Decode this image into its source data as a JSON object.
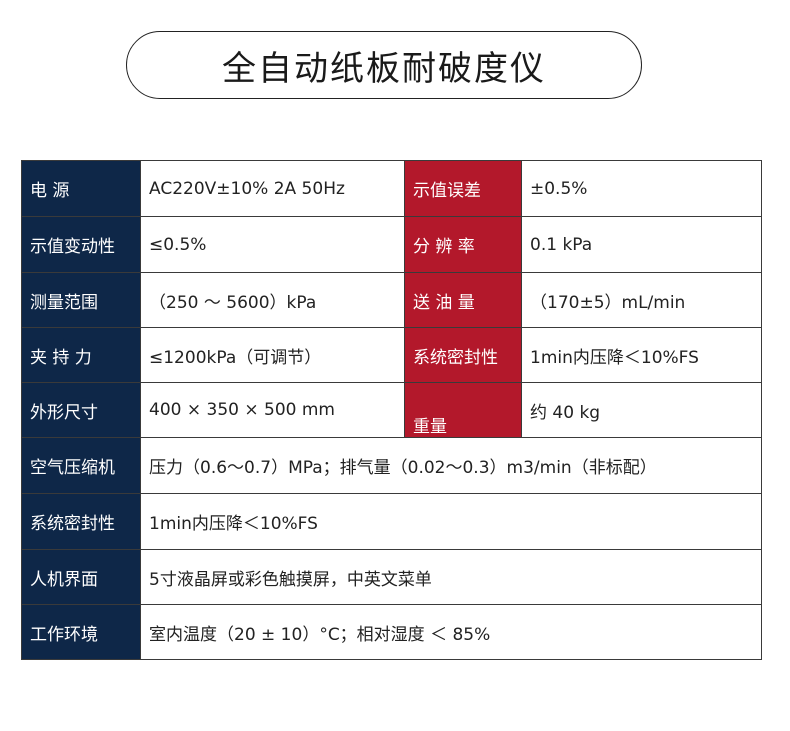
{
  "title": "全自动纸板耐破度仪",
  "rows": [
    {
      "label": "电  源",
      "value": "AC220V±10%  2A  50Hz",
      "label2": "示值误差",
      "value2": "±0.5%"
    },
    {
      "label": "示值变动性",
      "value": "≤0.5%",
      "label2": "分 辨 率",
      "value2": "0.1 kPa"
    },
    {
      "label": "测量范围",
      "value": "（250 ～ 5600）kPa",
      "label2": "送 油 量",
      "value2": "（170±5）mL/min"
    },
    {
      "label": "夹 持 力",
      "value": "≤1200kPa（可调节）",
      "label2": "系统密封性",
      "value2": "1min内压降＜10%FS"
    },
    {
      "label": "外形尺寸",
      "value": "400 × 350 × 500 mm",
      "label2": "重量",
      "value2": "约 40 kg"
    },
    {
      "label": "空气压缩机",
      "value": "压力（0.6～0.7）MPa；排气量（0.02～0.3）m3/min（非标配）"
    },
    {
      "label": "系统密封性",
      "value": "1min内压降＜10%FS"
    },
    {
      "label": "人机界面",
      "value": "5寸液晶屏或彩色触摸屏，中英文菜单"
    },
    {
      "label": "工作环境",
      "value": "室内温度（20 ± 10）°C；相对湿度 ＜ 85%"
    }
  ],
  "colors": {
    "label_navy": "#0e2748",
    "label_red": "#b3182b",
    "border": "#3a3a3a"
  }
}
